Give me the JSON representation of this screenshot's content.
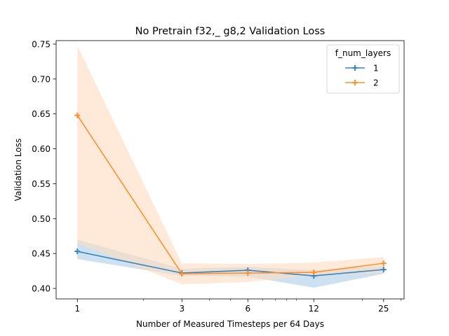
{
  "chart_data": {
    "type": "line",
    "title": "No Pretrain f32,_ g8,2 Validation Loss",
    "xlabel": "Number of Measured Timesteps per 64 Days",
    "ylabel": "Validation Loss",
    "xscale": "log",
    "x": [
      1,
      3,
      6,
      12,
      25
    ],
    "x_tick_labels": [
      "1",
      "3",
      "6",
      "12",
      "25"
    ],
    "xlim": [
      0.8,
      31
    ],
    "ylim": [
      0.385,
      0.755
    ],
    "y_ticks": [
      0.4,
      0.45,
      0.5,
      0.55,
      0.6,
      0.65,
      0.7,
      0.75
    ],
    "y_tick_labels": [
      "0.40",
      "0.45",
      "0.50",
      "0.55",
      "0.60",
      "0.65",
      "0.70",
      "0.75"
    ],
    "grid": false,
    "legend": {
      "title": "f_num_layers",
      "placement": "top-right"
    },
    "series": [
      {
        "name": "1",
        "color": "#3a84bd",
        "band_color": "#aecde8",
        "marker": "plus",
        "values": [
          0.453,
          0.422,
          0.426,
          0.418,
          0.427
        ],
        "ci_lower": [
          0.442,
          0.418,
          0.417,
          0.401,
          0.421
        ],
        "ci_upper": [
          0.47,
          0.428,
          0.431,
          0.426,
          0.432
        ]
      },
      {
        "name": "2",
        "color": "#ff9030",
        "band_color": "#ffdcbf",
        "marker": "plus",
        "values": [
          0.648,
          0.421,
          0.422,
          0.423,
          0.436
        ],
        "ci_lower": [
          0.465,
          0.406,
          0.409,
          0.419,
          0.422
        ],
        "ci_upper": [
          0.748,
          0.436,
          0.435,
          0.437,
          0.445
        ]
      }
    ]
  }
}
